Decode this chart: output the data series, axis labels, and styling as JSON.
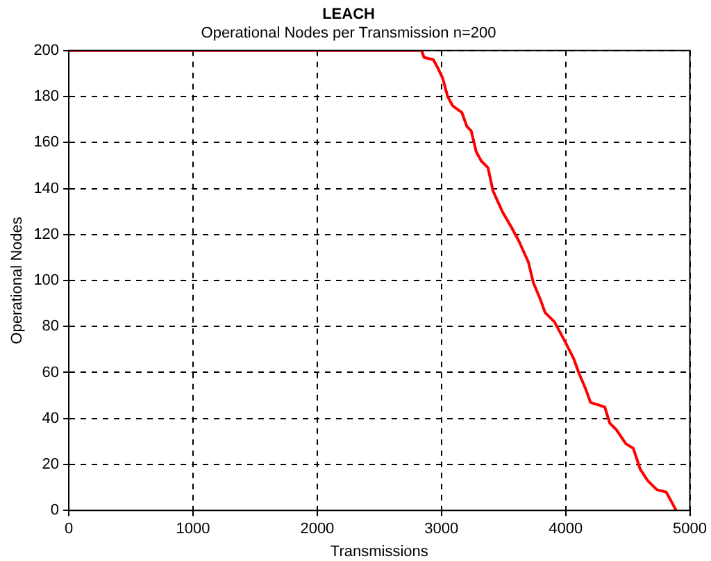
{
  "chart_data": {
    "type": "line",
    "title": "LEACH",
    "subtitle": "Operational Nodes per Transmission n=200",
    "xlabel": "Transmissions",
    "ylabel": "Operational Nodes",
    "x": [
      0,
      2840,
      2860,
      2935,
      2975,
      3010,
      3050,
      3090,
      3165,
      3205,
      3240,
      3280,
      3320,
      3375,
      3415,
      3490,
      3565,
      3625,
      3700,
      3740,
      3795,
      3835,
      3910,
      3990,
      4065,
      4105,
      4160,
      4200,
      4315,
      4355,
      4410,
      4485,
      4545,
      4600,
      4660,
      4735,
      4810,
      4890
    ],
    "series": [
      {
        "color": "#ff0000",
        "values": [
          200,
          200,
          197,
          196,
          192,
          188,
          180,
          176,
          173,
          167,
          165,
          156,
          152,
          149,
          139,
          130,
          123,
          117,
          108,
          99,
          92,
          86,
          82,
          74,
          66,
          60,
          53,
          47,
          45,
          38,
          35,
          29,
          27,
          18,
          13,
          9,
          8,
          0
        ]
      }
    ],
    "xlim": [
      0,
      5000
    ],
    "xticks": [
      0,
      1000,
      2000,
      3000,
      4000,
      5000
    ],
    "ylim": [
      0,
      200
    ],
    "yticks": [
      0,
      20,
      40,
      60,
      80,
      100,
      120,
      140,
      160,
      180,
      200
    ],
    "grid": true,
    "legend": false,
    "marker": "none",
    "line_style": "solid"
  }
}
